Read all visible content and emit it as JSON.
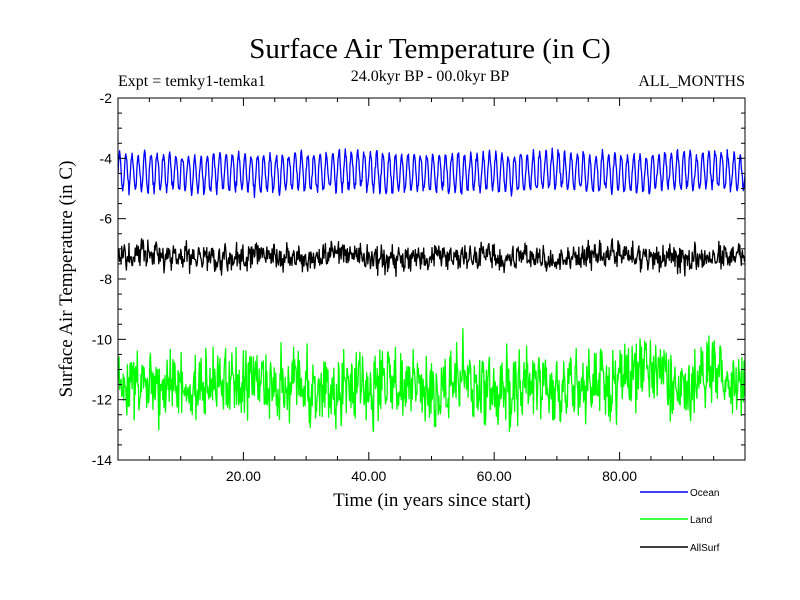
{
  "chart_data": {
    "type": "line",
    "title": "Surface Air Temperature (in C)",
    "subtitle_left": "Expt = temky1-temka1",
    "subtitle_center": "24.0kyr BP - 00.0kyr BP",
    "subtitle_right": "ALL_MONTHS",
    "xlabel": "Time (in years since start)",
    "ylabel": "Surface Air Temperature (in C)",
    "xlim": [
      0,
      100
    ],
    "ylim": [
      -14,
      -2
    ],
    "x_ticks": [
      20,
      40,
      60,
      80
    ],
    "x_tick_labels": [
      "20.00",
      "40.00",
      "60.00",
      "80.00"
    ],
    "y_ticks": [
      -14,
      -12,
      -10,
      -8,
      -6,
      -4,
      -2
    ],
    "y_tick_labels": [
      "-14",
      "-12",
      "-10",
      "-8",
      "-6",
      "-4",
      "-2"
    ],
    "series": [
      {
        "name": "Ocean",
        "color": "#0000ff",
        "mean": -4.45,
        "seasonal_amplitude": 0.6,
        "noise": 0.12,
        "points_per_year": 12
      },
      {
        "name": "Land",
        "color": "#00ff00",
        "mean": -11.5,
        "seasonal_amplitude": 0.35,
        "noise": 0.75,
        "points_per_year": 12
      },
      {
        "name": "AllSurf",
        "color": "#000000",
        "mean": -7.25,
        "seasonal_amplitude": 0.12,
        "noise": 0.28,
        "points_per_year": 12
      }
    ],
    "legend": [
      {
        "label": "Ocean",
        "color": "#0000ff"
      },
      {
        "label": "Land",
        "color": "#00ff00"
      },
      {
        "label": "AllSurf",
        "color": "#000000"
      }
    ]
  }
}
